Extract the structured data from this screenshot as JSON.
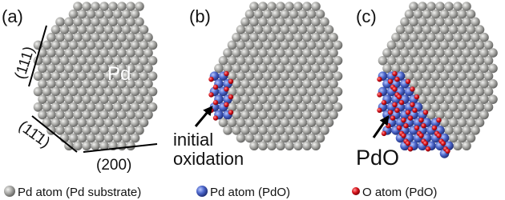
{
  "panels": [
    {
      "label": "(a)",
      "element_label": "Pd",
      "facets": [
        "(111)",
        "(11̄1)",
        "(200)"
      ]
    },
    {
      "label": "(b)",
      "annotation": [
        "initial",
        "oxidation"
      ]
    },
    {
      "label": "(c)",
      "annotation": [
        "PdO"
      ]
    }
  ],
  "legend": [
    {
      "label": "Pd atom (Pd substrate)"
    },
    {
      "label": "Pd atom (PdO)"
    },
    {
      "label": "O atom (PdO)"
    }
  ]
}
